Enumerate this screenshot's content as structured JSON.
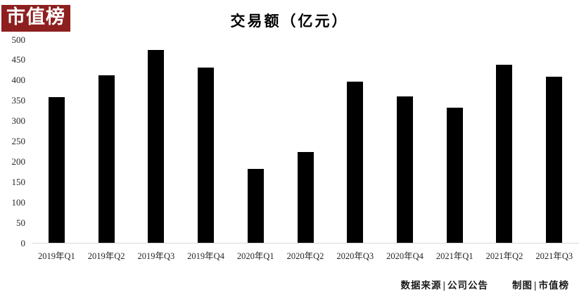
{
  "logo": {
    "text": "市值榜",
    "bg_color": "#8e1f1f",
    "text_color": "#ffffff"
  },
  "chart_data": {
    "type": "bar",
    "title": "交易额（亿元）",
    "categories": [
      "2019年Q1",
      "2019年Q2",
      "2019年Q3",
      "2019年Q4",
      "2020年Q1",
      "2020年Q2",
      "2020年Q3",
      "2020年Q4",
      "2021年Q1",
      "2021年Q2",
      "2021年Q3"
    ],
    "values": [
      358,
      412,
      474,
      430,
      182,
      224,
      396,
      360,
      332,
      438,
      409
    ],
    "xlabel": "",
    "ylabel": "",
    "ylim": [
      0,
      500
    ],
    "ytick_step": 50,
    "bar_color": "#000000",
    "axis_line_color": "#d9d9d9",
    "grid": false,
    "legend": false
  },
  "footer": {
    "source_label": "数据来源",
    "separator": "|",
    "source_value": "公司公告",
    "maker_label": "制图",
    "maker_value": "市值榜"
  }
}
